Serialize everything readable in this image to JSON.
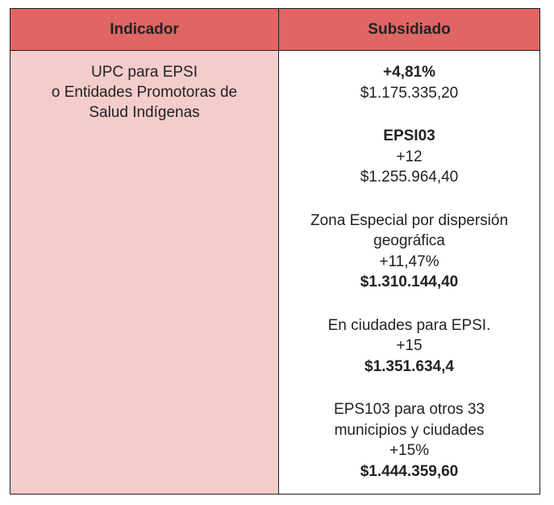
{
  "header": {
    "col1": "Indicador",
    "col2": "Subsidiado"
  },
  "indicator": [
    "UPC para EPSI",
    "o Entidades Promotoras de",
    "Salud Indígenas"
  ],
  "blocks": [
    {
      "lines": [
        {
          "text": "+4,81%",
          "bold": true
        },
        {
          "text": "$1.175.335,20",
          "bold": false
        }
      ]
    },
    {
      "lines": [
        {
          "text": "EPSI03",
          "bold": true
        },
        {
          "text": "+12",
          "bold": false
        },
        {
          "text": "$1.255.964,40",
          "bold": false
        }
      ]
    },
    {
      "lines": [
        {
          "text": "Zona Especial por dispersión",
          "bold": false
        },
        {
          "text": "geográfica",
          "bold": false
        },
        {
          "text": "+11,47%",
          "bold": false
        },
        {
          "text": "$1.310.144,40",
          "bold": true
        }
      ]
    },
    {
      "lines": [
        {
          "text": "En ciudades para EPSI.",
          "bold": false
        },
        {
          "text": "+15",
          "bold": false
        },
        {
          "text": "$1.351.634,4",
          "bold": true
        }
      ]
    },
    {
      "lines": [
        {
          "text": "EPS103 para otros 33",
          "bold": false
        },
        {
          "text": "municipios y ciudades",
          "bold": false
        },
        {
          "text": "+15%",
          "bold": false
        },
        {
          "text": "$1.444.359,60",
          "bold": true
        }
      ]
    }
  ],
  "colors": {
    "header": "#e06666",
    "indicator_cell": "#f4cccc"
  }
}
